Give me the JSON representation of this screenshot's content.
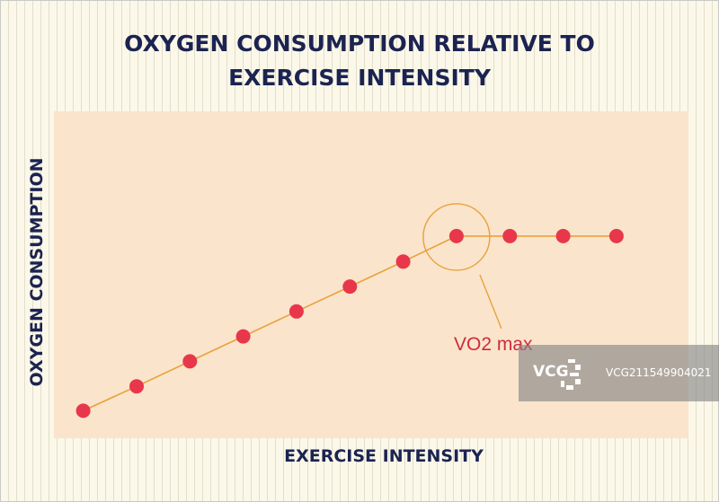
{
  "chart_data": {
    "type": "line",
    "title_line1": "OXYGEN CONSUMPTION RELATIVE TO",
    "title_line2": "EXERCISE INTENSITY",
    "xlabel": "EXERCISE INTENSITY",
    "ylabel": "OXYGEN CONSUMPTION",
    "x": [
      1,
      2,
      3,
      4,
      5,
      6,
      7,
      8,
      9,
      10,
      11
    ],
    "values": [
      1.0,
      1.98,
      2.98,
      3.98,
      4.98,
      5.98,
      6.98,
      8.0,
      8.0,
      8.0,
      8.0
    ],
    "xlim": [
      0.45,
      12.35
    ],
    "ylim": [
      -0.1,
      13.0
    ],
    "series_color": "#e8374a",
    "line_color": "#e9a13a",
    "plot_bg": "#fae4cc",
    "annotation": {
      "text": "VO2 max",
      "x": 8,
      "y": 8.0,
      "color": "#d12a3c"
    }
  },
  "watermark": {
    "logo_text": "VCG",
    "id_text": "VCG211549904021"
  }
}
